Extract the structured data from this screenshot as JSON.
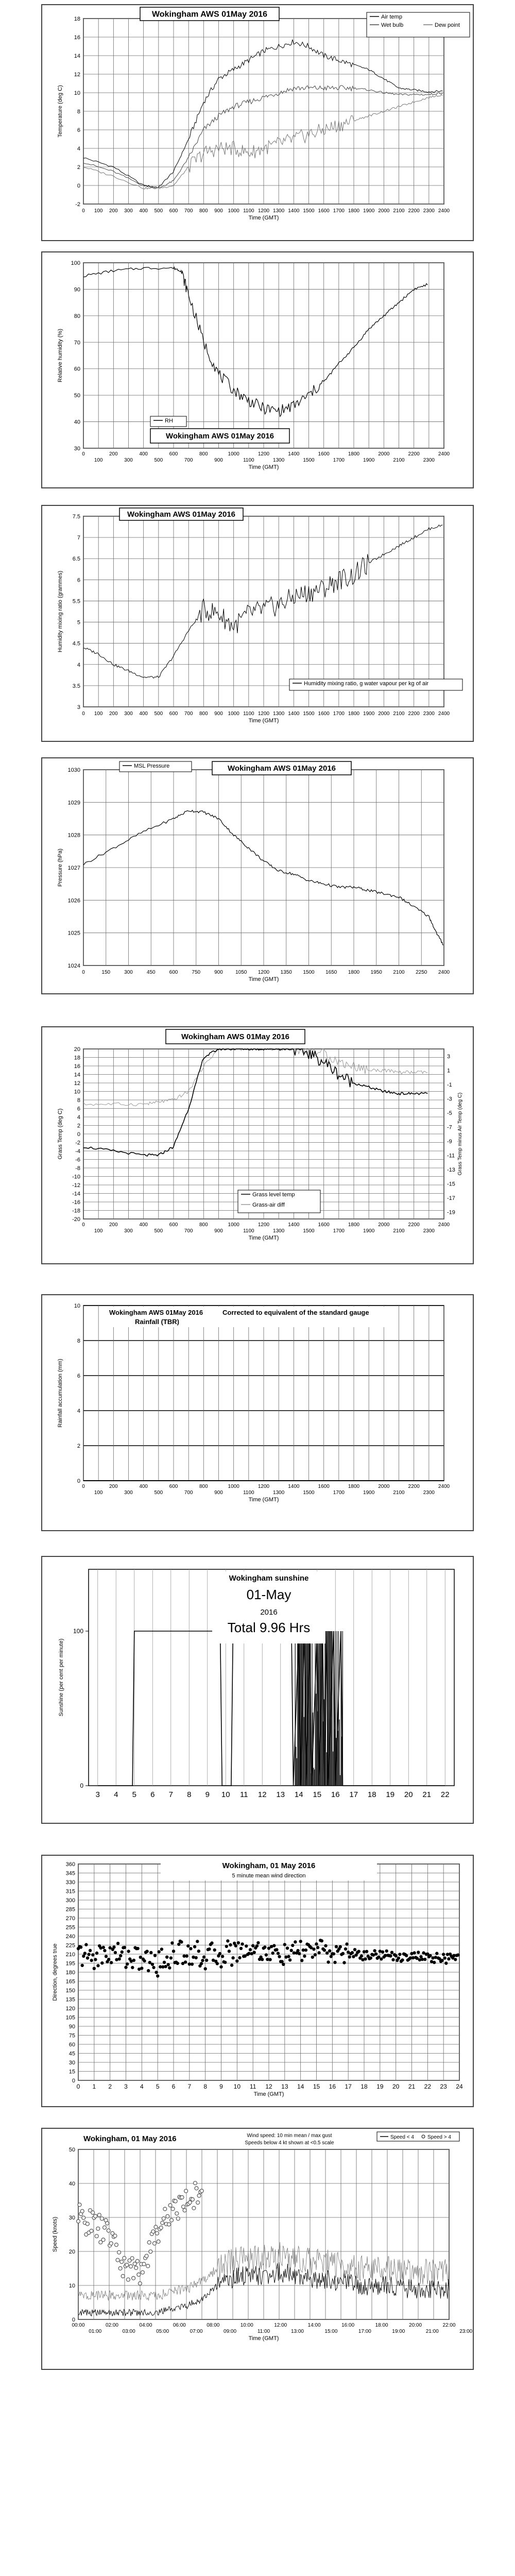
{
  "charts": [
    {
      "id": "temp",
      "title": "Wokingham AWS 01May 2016",
      "ylabel": "Temperature (deg C)",
      "xlabel": "Time (GMT)",
      "legend": [
        "Air temp",
        "Wet bulb",
        "Dew point"
      ],
      "yticks": [
        "-2",
        "0",
        "2",
        "4",
        "6",
        "8",
        "10",
        "12",
        "14",
        "16",
        "18"
      ],
      "xticks": [
        "0",
        "100",
        "200",
        "300",
        "400",
        "500",
        "600",
        "700",
        "800",
        "900",
        "1000",
        "1100",
        "1200",
        "1300",
        "1400",
        "1500",
        "1600",
        "1700",
        "1800",
        "1900",
        "2000",
        "2100",
        "2200",
        "2300",
        "2400"
      ]
    },
    {
      "id": "rh",
      "title": "Wokingham AWS 01May 2016",
      "ylabel": "Relative humidity (%)",
      "xlabel": "Time (GMT)",
      "legend": [
        "RH"
      ],
      "yticks": [
        "30",
        "40",
        "50",
        "60",
        "70",
        "80",
        "90",
        "100"
      ],
      "xticks_top": [
        "0",
        "200",
        "400",
        "600",
        "800",
        "1000",
        "1200",
        "1400",
        "1600",
        "1800",
        "2000",
        "2200",
        "2400"
      ],
      "xticks_bottom": [
        "100",
        "300",
        "500",
        "700",
        "900",
        "1100",
        "1300",
        "1500",
        "1700",
        "1900",
        "2100",
        "2300"
      ]
    },
    {
      "id": "mix",
      "title": "Wokingham AWS 01May 2016",
      "ylabel": "Humidity mixing ratio (grammes)",
      "xlabel": "Time (GMT)",
      "legend": [
        "Humidity mixing ratio, g water vapour per kg of air"
      ],
      "yticks": [
        "3",
        "3.5",
        "4",
        "4.5",
        "5",
        "5.5",
        "6",
        "6.5",
        "7",
        "7.5"
      ],
      "xticks": [
        "0",
        "100",
        "200",
        "300",
        "400",
        "500",
        "600",
        "700",
        "800",
        "900",
        "1000",
        "1100",
        "1200",
        "1300",
        "1400",
        "1500",
        "1600",
        "1700",
        "1800",
        "1900",
        "2000",
        "2100",
        "2200",
        "2300",
        "2400"
      ]
    },
    {
      "id": "pres",
      "title": "Wokingham AWS 01May 2016",
      "ylabel": "Pressure (hPa)",
      "xlabel": "Time (GMT)",
      "legend": [
        "MSL Pressure"
      ],
      "yticks": [
        "1024",
        "1025",
        "1026",
        "1027",
        "1028",
        "1029",
        "1030"
      ],
      "xticks": [
        "0",
        "300",
        "600",
        "900",
        "1200",
        "1500",
        "1800",
        "2100",
        "2400"
      ],
      "xticks_mid": [
        "150",
        "450",
        "750",
        "1050",
        "1350",
        "1650",
        "1950",
        "2250"
      ]
    },
    {
      "id": "grass",
      "title": "Wokingham AWS 01May 2016",
      "ylabel": "Grass Temp (deg C)",
      "ylabel2": "Grass Temp minus Air Temp (deg C)",
      "xlabel": "Time (GMT)",
      "legend": [
        "Grass level temp",
        "Grass-air diff"
      ],
      "yticks": [
        "-20",
        "-18",
        "-16",
        "-14",
        "-12",
        "-10",
        "-8",
        "-6",
        "-4",
        "-2",
        "0",
        "2",
        "4",
        "6",
        "8",
        "10",
        "12",
        "14",
        "16",
        "18",
        "20"
      ],
      "yticks2": [
        "-19",
        "-17",
        "-15",
        "-13",
        "-11",
        "-9",
        "-7",
        "-5",
        "-3",
        "-1",
        "1",
        "3"
      ],
      "xticks_top": [
        "0",
        "200",
        "400",
        "600",
        "800",
        "1000",
        "1200",
        "1400",
        "1600",
        "1800",
        "2000",
        "2200",
        "2400"
      ],
      "xticks_bottom": [
        "100",
        "300",
        "500",
        "700",
        "900",
        "1100",
        "1300",
        "1500",
        "1700",
        "1900",
        "2100",
        "2300"
      ]
    },
    {
      "id": "rain",
      "title": "Wokingham AWS 01May 2016",
      "subtitle": "Corrected to equivalent of the standard gauge",
      "title2": "Rainfall (TBR)",
      "ylabel": "Rainfall accumulation (mm)",
      "xlabel": "Time (GMT)",
      "yticks": [
        "0",
        "2",
        "4",
        "6",
        "8",
        "10"
      ],
      "xticks_top": [
        "0",
        "200",
        "400",
        "600",
        "800",
        "1000",
        "1200",
        "1400",
        "1600",
        "1800",
        "2000",
        "2200",
        "2400"
      ],
      "xticks_bottom": [
        "100",
        "300",
        "500",
        "700",
        "900",
        "1100",
        "1300",
        "1500",
        "1700",
        "1900",
        "2100",
        "2300"
      ]
    },
    {
      "id": "sun",
      "title": "Wokingham sunshine",
      "date": "01-May",
      "year": "2016",
      "total": "Total 9.96 Hrs",
      "ylabel": "Sunshine (per cent per minute)",
      "yticks": [
        "0",
        "100"
      ],
      "xticks": [
        "3",
        "4",
        "5",
        "6",
        "7",
        "8",
        "9",
        "10",
        "11",
        "12",
        "13",
        "14",
        "15",
        "16",
        "17",
        "18",
        "19",
        "20",
        "21",
        "22"
      ]
    },
    {
      "id": "dir",
      "title": "Wokingham,  01 May 2016",
      "subtitle": "5 minute mean wind direction",
      "ylabel": "Direction, degrees true",
      "xlabel": "Time (GMT)",
      "yticks": [
        "0",
        "15",
        "30",
        "45",
        "60",
        "75",
        "90",
        "105",
        "120",
        "135",
        "150",
        "165",
        "180",
        "195",
        "210",
        "225",
        "240",
        "255",
        "270",
        "285",
        "300",
        "315",
        "330",
        "345",
        "360"
      ],
      "xticks": [
        "0",
        "1",
        "2",
        "3",
        "4",
        "5",
        "6",
        "7",
        "8",
        "9",
        "10",
        "11",
        "12",
        "13",
        "14",
        "15",
        "16",
        "17",
        "18",
        "19",
        "20",
        "21",
        "22",
        "23",
        "24"
      ]
    },
    {
      "id": "speed",
      "title": "Wokingham,  01 May 2016",
      "subtitle": "Wind speed: 10 min mean / max gust",
      "subtitle2": "Speeds below 4 kt shown at <0.5 scale",
      "legend": [
        "Speed < 4",
        "Speed > 4"
      ],
      "ylabel": "Speed (knots)",
      "xlabel": "Time (GMT)",
      "yticks": [
        "0",
        "10",
        "20",
        "30",
        "40",
        "50"
      ],
      "xticks_top": [
        "00:00",
        "02:00",
        "04:00",
        "06:00",
        "08:00",
        "10:00",
        "12:00",
        "14:00",
        "16:00",
        "18:00",
        "20:00",
        "22:00"
      ],
      "xticks_bottom": [
        "01:00",
        "03:00",
        "05:00",
        "07:00",
        "09:00",
        "11:00",
        "13:00",
        "15:00",
        "17:00",
        "19:00",
        "21:00",
        "23:00"
      ]
    }
  ],
  "chart_data": [
    {
      "type": "line",
      "title": "Wokingham AWS 01May 2016",
      "xlabel": "Time (GMT)",
      "ylabel": "Temperature (deg C)",
      "ylim": [
        -2,
        18
      ],
      "xlim": [
        0,
        2400
      ],
      "grid": true,
      "legend_position": "top-right",
      "x": [
        0,
        200,
        400,
        500,
        600,
        700,
        800,
        900,
        1000,
        1100,
        1200,
        1300,
        1400,
        1500,
        1600,
        1700,
        1800,
        1900,
        2000,
        2100,
        2200,
        2300,
        2400
      ],
      "series": [
        {
          "name": "Air temp",
          "values": [
            3,
            2,
            0,
            -0.2,
            1.5,
            5,
            9,
            11.5,
            12.5,
            13.5,
            14.5,
            15,
            15.5,
            15,
            14,
            13.5,
            13,
            12.5,
            11.5,
            10.5,
            10.3,
            10.1,
            10.2
          ]
        },
        {
          "name": "Wet bulb",
          "values": [
            2.5,
            1.5,
            0,
            -0.3,
            0.5,
            3,
            6,
            7.5,
            8.5,
            9,
            9.5,
            10,
            10.5,
            10.5,
            10.5,
            10.5,
            10.5,
            10.3,
            10,
            9.8,
            9.8,
            9.8,
            10
          ]
        },
        {
          "name": "Dew point",
          "values": [
            2,
            1,
            -0.3,
            -0.3,
            0,
            2,
            3.5,
            4,
            4,
            3.5,
            4,
            4.5,
            5,
            5.5,
            6,
            6.5,
            7,
            7.5,
            8,
            8.5,
            9,
            9.5,
            9.8
          ]
        }
      ]
    },
    {
      "type": "line",
      "title": "Wokingham AWS 01May 2016",
      "xlabel": "Time (GMT)",
      "ylabel": "Relative humidity (%)",
      "ylim": [
        30,
        100
      ],
      "xlim": [
        0,
        2400
      ],
      "grid": true,
      "legend_position": "bottom-left",
      "x": [
        0,
        200,
        400,
        600,
        650,
        700,
        800,
        900,
        1000,
        1100,
        1200,
        1300,
        1400,
        1500,
        1600,
        1700,
        1800,
        1900,
        2000,
        2100,
        2200,
        2300
      ],
      "series": [
        {
          "name": "RH",
          "values": [
            95,
            97,
            98,
            98,
            97,
            88,
            70,
            58,
            52,
            48,
            45,
            44,
            46,
            50,
            55,
            62,
            68,
            75,
            80,
            85,
            90,
            92
          ]
        }
      ]
    },
    {
      "type": "line",
      "title": "Wokingham AWS 01May 2016",
      "xlabel": "Time (GMT)",
      "ylabel": "Humidity mixing ratio (grammes)",
      "ylim": [
        3,
        7.5
      ],
      "xlim": [
        0,
        2400
      ],
      "grid": true,
      "legend_position": "bottom-right",
      "x": [
        0,
        100,
        200,
        300,
        400,
        500,
        600,
        700,
        800,
        900,
        1000,
        1100,
        1200,
        1300,
        1400,
        1500,
        1600,
        1700,
        1800,
        1900,
        2000,
        2100,
        2200,
        2300,
        2400
      ],
      "series": [
        {
          "name": "Humidity mixing ratio, g water vapour per kg of air",
          "values": [
            4.4,
            4.25,
            4.0,
            3.85,
            3.7,
            3.7,
            4.2,
            4.8,
            5.3,
            5.2,
            4.9,
            5.2,
            5.3,
            5.4,
            5.6,
            5.7,
            5.8,
            6.0,
            6.1,
            6.4,
            6.6,
            6.8,
            7.0,
            7.2,
            7.3
          ]
        }
      ]
    },
    {
      "type": "line",
      "title": "Wokingham AWS 01May 2016",
      "xlabel": "Time (GMT)",
      "ylabel": "Pressure (hPa)",
      "ylim": [
        1024,
        1030
      ],
      "xlim": [
        0,
        2400
      ],
      "grid": true,
      "legend_position": "top-left",
      "x": [
        0,
        200,
        400,
        600,
        700,
        800,
        900,
        1000,
        1100,
        1200,
        1300,
        1400,
        1500,
        1600,
        1700,
        1800,
        1900,
        2000,
        2100,
        2200,
        2300,
        2350,
        2400
      ],
      "series": [
        {
          "name": "MSL Pressure",
          "values": [
            1027.1,
            1027.6,
            1028.1,
            1028.5,
            1028.75,
            1028.7,
            1028.5,
            1028.0,
            1027.6,
            1027.2,
            1026.9,
            1026.8,
            1026.6,
            1026.5,
            1026.4,
            1026.4,
            1026.3,
            1026.2,
            1026.1,
            1025.8,
            1025.5,
            1025.0,
            1024.6
          ]
        }
      ]
    },
    {
      "type": "line",
      "title": "Wokingham AWS 01May 2016",
      "xlabel": "Time (GMT)",
      "ylabel": "Grass Temp (deg C)",
      "ylim": [
        -20,
        20
      ],
      "xlim": [
        0,
        2400
      ],
      "grid": true,
      "legend_position": "bottom-center",
      "x": [
        0,
        200,
        400,
        500,
        600,
        700,
        800,
        900,
        1000,
        1100,
        1200,
        1300,
        1400,
        1500,
        1600,
        1700,
        1800,
        1900,
        2000,
        2100,
        2200,
        2300
      ],
      "series": [
        {
          "name": "Grass level temp",
          "values": [
            -3,
            -4,
            -5,
            -5,
            -3,
            6,
            18,
            20,
            20,
            20,
            20,
            20,
            20,
            19,
            17,
            14,
            12,
            11,
            10,
            9.5,
            9.5,
            9.5
          ]
        },
        {
          "name": "Grass-air diff",
          "values": [
            7,
            7,
            7,
            7.5,
            8,
            10,
            16,
            20,
            20,
            20,
            20,
            20,
            20,
            20,
            19,
            17,
            16,
            15,
            15,
            14.5,
            14.5,
            14.5
          ]
        }
      ]
    },
    {
      "type": "line",
      "title": "Wokingham AWS 01May 2016",
      "ylabel": "Rainfall accumulation (mm)",
      "xlabel": "Time (GMT)",
      "ylim": [
        0,
        10
      ],
      "xlim": [
        0,
        2400
      ],
      "grid": true,
      "x": [
        0,
        2400
      ],
      "series": [
        {
          "name": "Rainfall (TBR)",
          "values": [
            0,
            0
          ]
        }
      ]
    },
    {
      "type": "line",
      "title": "Wokingham sunshine",
      "ylabel": "Sunshine (per cent per minute)",
      "ylim": [
        0,
        100
      ],
      "xlim": [
        3,
        22
      ],
      "grid": true,
      "x": [
        3,
        4.9,
        5.0,
        9.7,
        9.8,
        10.3,
        10.4,
        13.6,
        13.7,
        14.0,
        14.1,
        14.3,
        14.4,
        14.6,
        14.7,
        15.0,
        15.1,
        15.3,
        15.4,
        15.5,
        15.6,
        15.9,
        16.0,
        16.3,
        16.4,
        22
      ],
      "series": [
        {
          "name": "Sunshine",
          "values": [
            0,
            0,
            100,
            100,
            0,
            0,
            100,
            100,
            0,
            100,
            0,
            100,
            0,
            100,
            0,
            100,
            0,
            100,
            0,
            100,
            0,
            100,
            0,
            100,
            0,
            0
          ]
        }
      ]
    },
    {
      "type": "scatter",
      "title": "Wokingham,  01 May 2016",
      "subtitle": "5 minute mean wind direction",
      "ylabel": "Direction, degrees true",
      "xlabel": "Time (GMT)",
      "ylim": [
        0,
        360
      ],
      "xlim": [
        0,
        24
      ],
      "grid": true,
      "x": [
        0,
        1,
        2,
        3,
        4,
        5,
        6,
        7,
        8,
        9,
        10,
        11,
        12,
        13,
        14,
        15,
        16,
        17,
        18,
        19,
        20,
        21,
        22,
        23
      ],
      "series": [
        {
          "name": "Direction",
          "values": [
            210,
            205,
            212,
            208,
            200,
            195,
            210,
            215,
            205,
            210,
            215,
            220,
            212,
            208,
            215,
            218,
            210,
            212,
            208,
            210,
            205,
            208,
            204,
            203
          ]
        }
      ]
    },
    {
      "type": "line",
      "title": "Wokingham,  01 May 2016",
      "ylabel": "Speed (knots)",
      "xlabel": "Time (GMT)",
      "ylim": [
        0,
        50
      ],
      "xlim": [
        0,
        24
      ],
      "grid": true,
      "legend_position": "top-right",
      "x": [
        0,
        1,
        2,
        3,
        4,
        5,
        6,
        7,
        8,
        9,
        10,
        11,
        12,
        13,
        14,
        15,
        16,
        17,
        18,
        19,
        20,
        21,
        22,
        23,
        24
      ],
      "series": [
        {
          "name": "Speed < 4",
          "values": [
            30,
            28,
            25,
            15,
            14,
            25,
            32,
            35,
            38,
            null,
            null,
            null,
            null,
            null,
            null,
            null,
            null,
            null,
            null,
            null,
            null,
            null,
            null,
            null,
            null
          ]
        },
        {
          "name": "Speed > 4",
          "values": [
            2,
            2,
            2,
            2,
            2,
            2,
            3,
            4,
            6,
            10,
            12,
            13,
            13,
            14,
            13,
            12,
            12,
            11,
            10,
            10,
            10,
            9,
            9,
            9,
            9
          ]
        }
      ]
    }
  ]
}
